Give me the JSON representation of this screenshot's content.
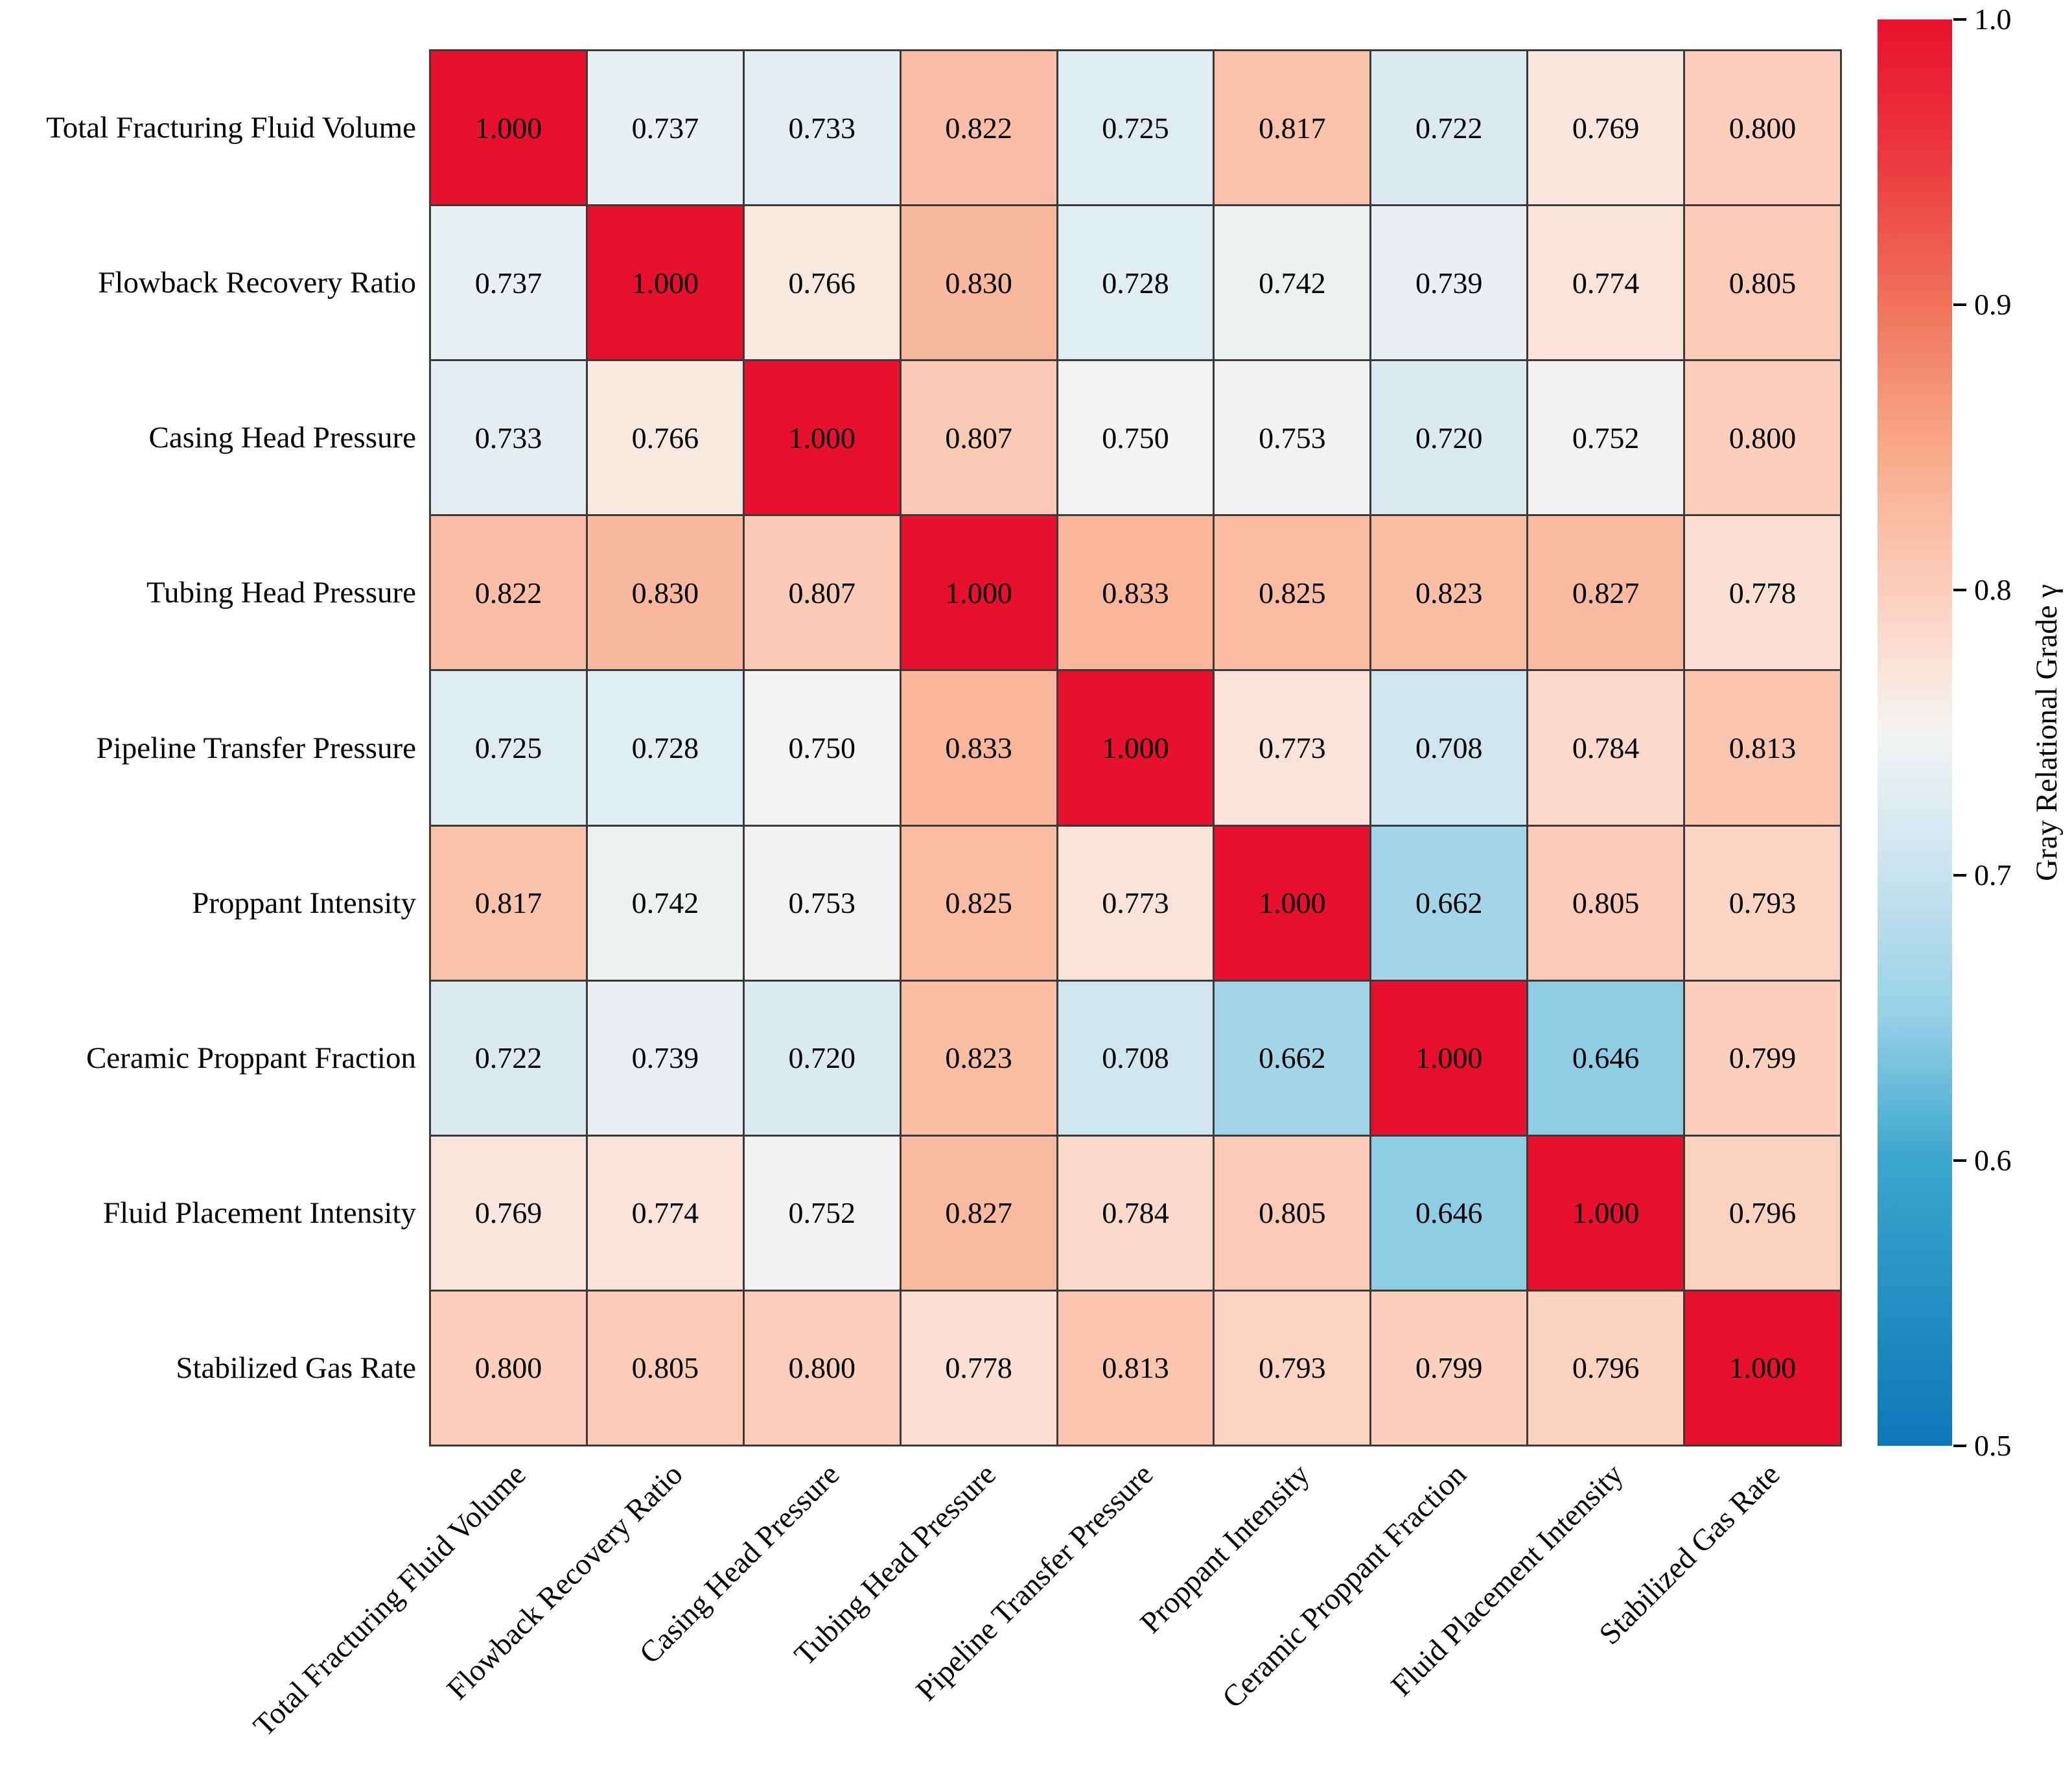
{
  "figure": {
    "background": "#ffffff"
  },
  "chart_data": {
    "type": "heatmap",
    "title": "",
    "categories": [
      "Total Fracturing Fluid Volume",
      "Flowback Recovery Ratio",
      "Casing Head Pressure",
      "Tubing Head Pressure",
      "Pipeline Transfer Pressure",
      "Proppant Intensity",
      "Ceramic Proppant Fraction",
      "Fluid Placement Intensity",
      "Stabilized Gas Rate"
    ],
    "matrix": [
      [
        1.0,
        0.737,
        0.733,
        0.822,
        0.725,
        0.817,
        0.722,
        0.769,
        0.8
      ],
      [
        0.737,
        1.0,
        0.766,
        0.83,
        0.728,
        0.742,
        0.739,
        0.774,
        0.805
      ],
      [
        0.733,
        0.766,
        1.0,
        0.807,
        0.75,
        0.753,
        0.72,
        0.752,
        0.8
      ],
      [
        0.822,
        0.83,
        0.807,
        1.0,
        0.833,
        0.825,
        0.823,
        0.827,
        0.778
      ],
      [
        0.725,
        0.728,
        0.75,
        0.833,
        1.0,
        0.773,
        0.708,
        0.784,
        0.813
      ],
      [
        0.817,
        0.742,
        0.753,
        0.825,
        0.773,
        1.0,
        0.662,
        0.805,
        0.793
      ],
      [
        0.722,
        0.739,
        0.72,
        0.823,
        0.708,
        0.662,
        1.0,
        0.646,
        0.799
      ],
      [
        0.769,
        0.774,
        0.752,
        0.827,
        0.784,
        0.805,
        0.646,
        1.0,
        0.796
      ],
      [
        0.8,
        0.805,
        0.8,
        0.778,
        0.813,
        0.793,
        0.799,
        0.796,
        1.0
      ]
    ],
    "value_decimals": 3,
    "x_tick_rotation": 45,
    "grid_on": true,
    "colorbar": {
      "label": "Gray Relational Grade γ",
      "tick_labels": [
        "1.0",
        "0.9",
        "0.8",
        "0.7",
        "0.6",
        "0.5"
      ],
      "vmin": 0.5,
      "vmax": 1.0,
      "position": "right"
    },
    "colors": {
      "grid_line": "#3a3a3a",
      "cell_text": "#000000",
      "label_text": "#000000",
      "diagonal_red": "#e8112d",
      "low_blue": "#0d78b7",
      "colormap_stops": [
        {
          "v": 0.5,
          "hex": "#0d78b7"
        },
        {
          "v": 0.6,
          "hex": "#3ba6cd"
        },
        {
          "v": 0.65,
          "hex": "#96d0e6"
        },
        {
          "v": 0.7,
          "hex": "#c8e3ef"
        },
        {
          "v": 0.75,
          "hex": "#f3f4f3"
        },
        {
          "v": 0.78,
          "hex": "#fbddd0"
        },
        {
          "v": 0.8,
          "hex": "#fbcfbc"
        },
        {
          "v": 0.85,
          "hex": "#f8a98a"
        },
        {
          "v": 0.9,
          "hex": "#f0735a"
        },
        {
          "v": 0.95,
          "hex": "#ec3a40"
        },
        {
          "v": 1.0,
          "hex": "#e8112d"
        }
      ]
    }
  }
}
